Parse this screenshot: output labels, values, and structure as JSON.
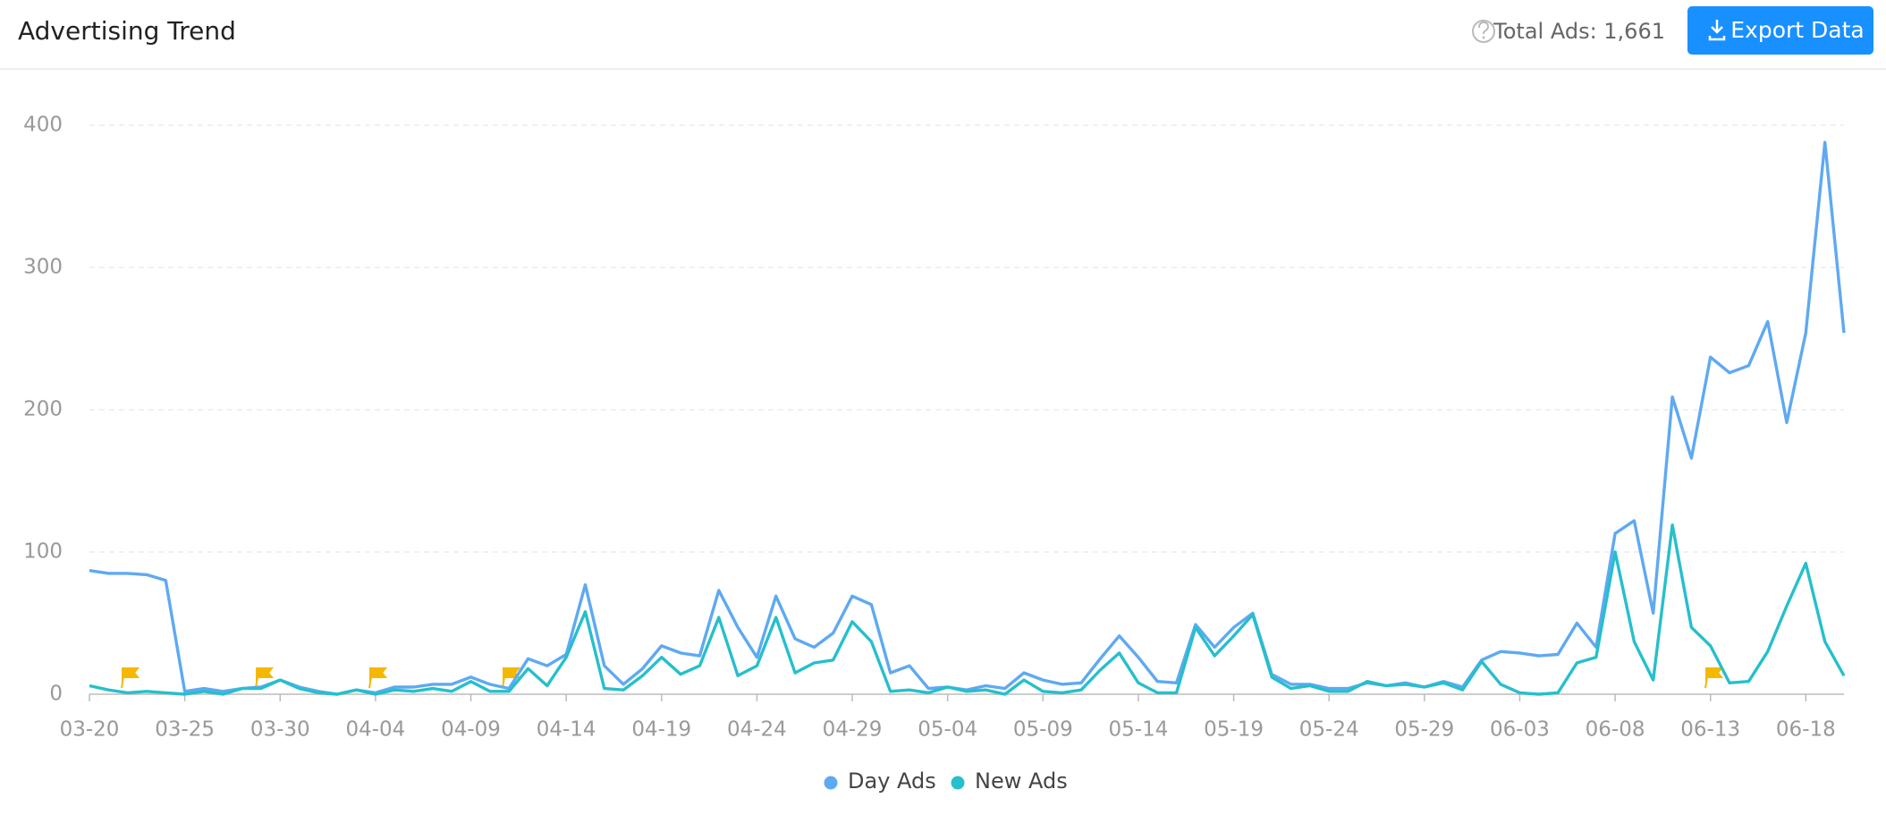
{
  "header": {
    "title": "Advertising Trend",
    "total": "Total Ads: 1,661",
    "button": "Export Data"
  },
  "chart_data": {
    "type": "line",
    "categories": [
      "03-20",
      null,
      null,
      null,
      null,
      "03-25",
      null,
      null,
      null,
      null,
      "03-30",
      null,
      null,
      null,
      null,
      "04-04",
      null,
      null,
      null,
      null,
      "04-09",
      null,
      null,
      null,
      null,
      "04-14",
      null,
      null,
      null,
      null,
      "04-19",
      null,
      null,
      null,
      null,
      "04-24",
      null,
      null,
      null,
      null,
      "04-29",
      null,
      null,
      null,
      null,
      "05-04",
      null,
      null,
      null,
      null,
      "05-09",
      null,
      null,
      null,
      null,
      "05-14",
      null,
      null,
      null,
      null,
      "05-19",
      null,
      null,
      null,
      null,
      "05-24",
      null,
      null,
      null,
      null,
      "05-29",
      null,
      null,
      null,
      null,
      "06-03",
      null,
      null,
      null,
      null,
      "06-08",
      null,
      null,
      null,
      null,
      "06-13",
      null,
      null,
      null,
      null,
      "06-18",
      null,
      null
    ],
    "series": [
      {
        "name": "Day Ads",
        "color": "#5ea9f2",
        "values": [
          87,
          85,
          85,
          84,
          80,
          2,
          4,
          2,
          4,
          5,
          10,
          5,
          2,
          0,
          3,
          1,
          5,
          5,
          7,
          7,
          12,
          7,
          4,
          25,
          20,
          28,
          77,
          20,
          7,
          18,
          34,
          29,
          27,
          73,
          47,
          26,
          69,
          39,
          33,
          43,
          69,
          63,
          15,
          20,
          4,
          5,
          3,
          6,
          4,
          15,
          10,
          7,
          8,
          25,
          41,
          26,
          9,
          8,
          49,
          33,
          47,
          57,
          14,
          7,
          7,
          4,
          4,
          8,
          6,
          8,
          5,
          9,
          5,
          24,
          30,
          29,
          27,
          28,
          50,
          33,
          113,
          122,
          57,
          209,
          166,
          237,
          226,
          231,
          262,
          191,
          254,
          388,
          254
        ]
      },
      {
        "name": "New Ads",
        "color": "#26bfcc",
        "values": [
          6,
          3,
          1,
          2,
          1,
          0,
          2,
          0,
          4,
          4,
          10,
          4,
          1,
          0,
          3,
          0,
          3,
          2,
          4,
          2,
          9,
          2,
          2,
          18,
          6,
          26,
          58,
          4,
          3,
          13,
          26,
          14,
          20,
          54,
          13,
          20,
          54,
          15,
          22,
          24,
          51,
          37,
          2,
          3,
          1,
          5,
          2,
          3,
          0,
          10,
          2,
          1,
          3,
          17,
          29,
          8,
          1,
          1,
          47,
          27,
          41,
          56,
          12,
          4,
          6,
          2,
          2,
          9,
          6,
          7,
          5,
          8,
          3,
          23,
          7,
          1,
          0,
          1,
          22,
          26,
          100,
          37,
          10,
          119,
          47,
          34,
          8,
          9,
          30,
          62,
          92,
          37,
          13
        ]
      }
    ],
    "ylim": [
      0,
      400
    ],
    "yticks": [
      0,
      100,
      200,
      300,
      400
    ],
    "grid": true
  }
}
